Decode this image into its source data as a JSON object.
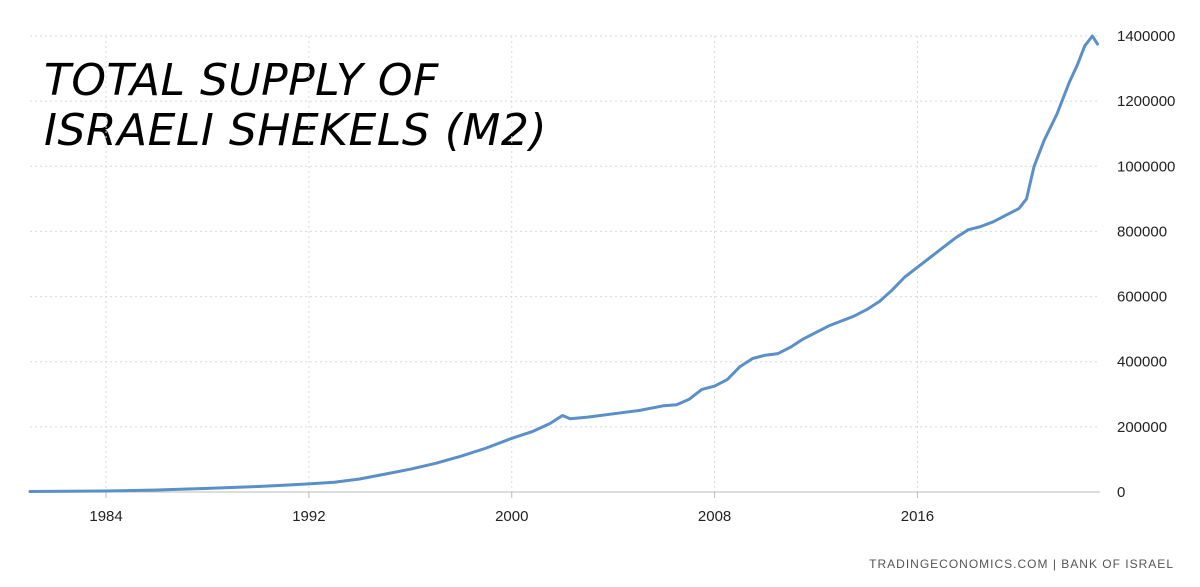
{
  "title_lines": [
    "TOTAL SUPPLY OF",
    "ISRAELI SHEKELS (M2)"
  ],
  "source": "TRADINGECONOMICS.COM  |  BANK OF ISRAEL",
  "colors": {
    "line": "#5b8fc7",
    "grid": "#dadada",
    "axis": "#bbbbbb"
  },
  "chart_data": {
    "type": "line",
    "title": "TOTAL SUPPLY OF ISRAELI SHEKELS (M2)",
    "xlabel": "",
    "ylabel": "",
    "xlim": [
      1981.0,
      2023.2
    ],
    "ylim": [
      0,
      1400000
    ],
    "x_ticks": [
      1984,
      1992,
      2000,
      2008,
      2016
    ],
    "y_ticks": [
      0,
      200000,
      400000,
      600000,
      800000,
      1000000,
      1200000,
      1400000
    ],
    "grid": true,
    "y_axis_side": "right",
    "series": [
      {
        "x": [
          1981.0,
          1984.0,
          1986.0,
          1988.0,
          1990.0,
          1991.0,
          1992.0,
          1993.0,
          1994.0,
          1995.0,
          1996.0,
          1997.0,
          1998.0,
          1999.0,
          2000.0,
          2000.8,
          2001.5,
          2002.0,
          2002.3,
          2003.0,
          2004.0,
          2005.0,
          2006.0,
          2006.5,
          2007.0,
          2007.5,
          2008.0,
          2008.5,
          2009.0,
          2009.5,
          2010.0,
          2010.5,
          2011.0,
          2011.5,
          2012.0,
          2012.5,
          2013.0,
          2013.5,
          2014.0,
          2014.5,
          2015.0,
          2015.5,
          2016.0,
          2016.5,
          2017.0,
          2017.5,
          2018.0,
          2018.5,
          2019.0,
          2019.5,
          2020.0,
          2020.3,
          2020.6,
          2021.0,
          2021.5,
          2022.0,
          2022.3,
          2022.6,
          2022.9,
          2023.1
        ],
        "y": [
          1500,
          3000,
          6000,
          11000,
          17000,
          21000,
          25000,
          30000,
          40000,
          55000,
          70000,
          88000,
          110000,
          135000,
          165000,
          185000,
          210000,
          235000,
          225000,
          230000,
          240000,
          250000,
          265000,
          268000,
          285000,
          315000,
          325000,
          345000,
          385000,
          410000,
          420000,
          425000,
          445000,
          470000,
          490000,
          510000,
          525000,
          540000,
          560000,
          585000,
          620000,
          660000,
          690000,
          720000,
          750000,
          780000,
          805000,
          815000,
          830000,
          850000,
          870000,
          900000,
          1000000,
          1080000,
          1160000,
          1260000,
          1310000,
          1370000,
          1400000,
          1375000
        ]
      }
    ]
  }
}
